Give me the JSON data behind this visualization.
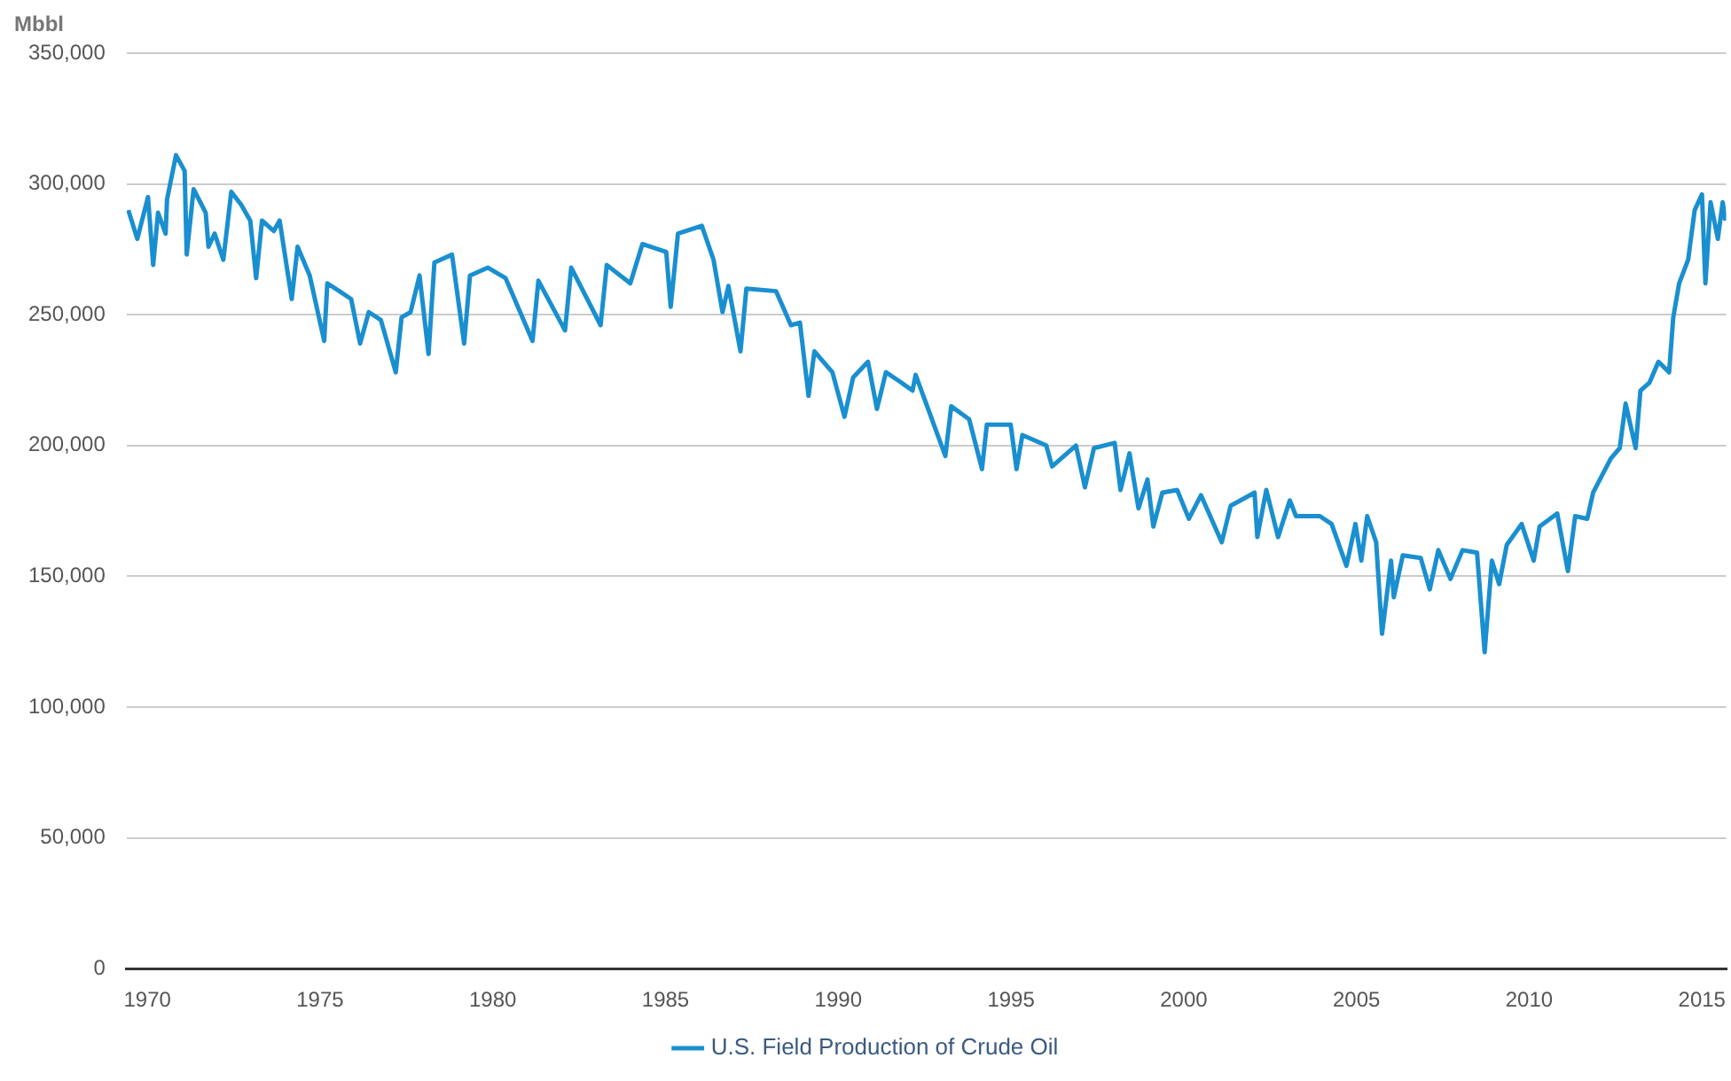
{
  "chart_data": {
    "type": "line",
    "ylabel": "Mbbl",
    "x": [
      1969.45,
      1969.71,
      1970.02,
      1970.17,
      1970.31,
      1970.53,
      1970.57,
      1970.83,
      1971.08,
      1971.14,
      1971.34,
      1971.69,
      1971.77,
      1971.95,
      1972.2,
      1972.43,
      1972.72,
      1972.98,
      1973.15,
      1973.32,
      1973.66,
      1973.83,
      1974.18,
      1974.35,
      1974.7,
      1975.12,
      1975.21,
      1975.56,
      1975.9,
      1976.16,
      1976.41,
      1976.76,
      1977.19,
      1977.36,
      1977.62,
      1977.88,
      1978.14,
      1978.31,
      1978.82,
      1979.17,
      1979.34,
      1979.86,
      1980.37,
      1981.15,
      1981.32,
      1982.09,
      1982.27,
      1983.12,
      1983.3,
      1983.98,
      1984.33,
      1985.02,
      1985.15,
      1985.36,
      1986.05,
      1986.39,
      1986.65,
      1986.82,
      1987.17,
      1987.34,
      1988.2,
      1988.63,
      1988.89,
      1989.14,
      1989.31,
      1989.83,
      1990.18,
      1990.43,
      1990.86,
      1991.12,
      1991.38,
      1991.72,
      1992.15,
      1992.24,
      1993.1,
      1993.27,
      1993.79,
      1994.16,
      1994.3,
      1994.99,
      1995.16,
      1995.33,
      1996.02,
      1996.19,
      1996.88,
      1997.14,
      1997.4,
      1998.0,
      1998.17,
      1998.43,
      1998.69,
      1998.95,
      1999.12,
      1999.38,
      1999.81,
      2000.15,
      2000.5,
      2001.1,
      2001.36,
      2002.05,
      2002.13,
      2002.39,
      2002.73,
      2003.07,
      2003.25,
      2003.94,
      2004.28,
      2004.71,
      2004.97,
      2005.14,
      2005.31,
      2005.57,
      2005.74,
      2006.0,
      2006.08,
      2006.34,
      2006.86,
      2007.12,
      2007.37,
      2007.72,
      2008.07,
      2008.49,
      2008.71,
      2008.92,
      2009.13,
      2009.35,
      2009.78,
      2010.13,
      2010.3,
      2010.81,
      2011.12,
      2011.33,
      2011.68,
      2011.85,
      2012.36,
      2012.62,
      2012.79,
      2013.08,
      2013.22,
      2013.48,
      2013.74,
      2014.05,
      2014.17,
      2014.34,
      2014.6,
      2014.79,
      2015.0,
      2015.1,
      2015.25,
      2015.46,
      2015.6,
      2015.68
    ],
    "series": [
      {
        "name": "U.S. Field Production of Crude Oil",
        "color": "#1a8fd0",
        "values": [
          290000,
          279000,
          295000,
          269000,
          289000,
          281000,
          294000,
          311000,
          305000,
          273000,
          298000,
          289000,
          276000,
          281000,
          271000,
          297000,
          292000,
          286000,
          264000,
          286000,
          282000,
          286000,
          256000,
          276000,
          265000,
          240000,
          262000,
          259000,
          256000,
          239000,
          251000,
          248000,
          228000,
          249000,
          251000,
          265000,
          235000,
          270000,
          273000,
          239000,
          265000,
          268000,
          264000,
          240000,
          263000,
          244000,
          268000,
          246000,
          269000,
          262000,
          277000,
          274000,
          253000,
          281000,
          284000,
          271000,
          251000,
          261000,
          236000,
          260000,
          259000,
          246000,
          247000,
          219000,
          236000,
          228000,
          211000,
          226000,
          232000,
          214000,
          228000,
          225000,
          221000,
          227000,
          196000,
          215000,
          210000,
          191000,
          208000,
          208000,
          191000,
          204000,
          200000,
          192000,
          200000,
          184000,
          199000,
          201000,
          183000,
          197000,
          176000,
          187000,
          169000,
          182000,
          183000,
          172000,
          181000,
          163000,
          177000,
          182000,
          165000,
          183000,
          165000,
          179000,
          173000,
          173000,
          170000,
          154000,
          170000,
          156000,
          173000,
          163000,
          128000,
          156000,
          142000,
          158000,
          157000,
          145000,
          160000,
          149000,
          160000,
          159000,
          121000,
          156000,
          147000,
          162000,
          170000,
          156000,
          169000,
          174000,
          152000,
          173000,
          172000,
          182000,
          195000,
          199000,
          216000,
          199000,
          221000,
          224000,
          232000,
          228000,
          249000,
          262000,
          271000,
          290000,
          296000,
          262000,
          293000,
          279000,
          293000,
          286000
        ]
      }
    ],
    "xlim": [
      1969.4,
      2015.7
    ],
    "xticks": [
      1970,
      1975,
      1980,
      1985,
      1990,
      1995,
      2000,
      2005,
      2010,
      2015
    ],
    "ylim": [
      0,
      350000
    ],
    "yticks": [
      0,
      {
        "value": 50000,
        "label": "50,000"
      },
      {
        "value": 100000,
        "label": "100,000"
      },
      {
        "value": 150000,
        "label": "150,000"
      },
      {
        "value": 200000,
        "label": "200,000"
      },
      {
        "value": 250000,
        "label": "250,000"
      },
      {
        "value": 300000,
        "label": "300,000"
      },
      {
        "value": 350000,
        "label": "350,000"
      }
    ],
    "grid": "y",
    "legend": "bottom",
    "marker": "none",
    "line_style": "solid"
  }
}
